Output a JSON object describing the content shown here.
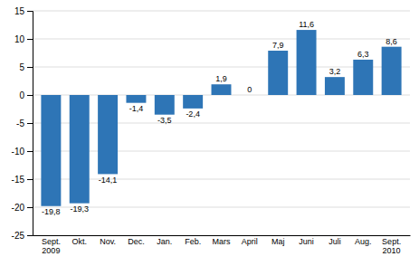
{
  "chart_data": {
    "type": "bar",
    "categories": [
      "Sept.\n2009",
      "Okt.",
      "Nov.",
      "Dec.",
      "Jan.",
      "Feb.",
      "Mars",
      "April",
      "Maj",
      "Juni",
      "Juli",
      "Aug.",
      "Sept.\n2010"
    ],
    "values": [
      -19.8,
      -19.3,
      -14.1,
      -1.4,
      -3.5,
      -2.4,
      1.9,
      0,
      7.9,
      11.6,
      3.2,
      6.3,
      8.6
    ],
    "value_labels": [
      "-19,8",
      "-19,3",
      "-14,1",
      "-1,4",
      "-3,5",
      "-2,4",
      "1,9",
      "0",
      "7,9",
      "11,6",
      "3,2",
      "6,3",
      "8,6"
    ],
    "data_labels": true,
    "color": "#2E75B6",
    "ylim": [
      -25,
      15
    ],
    "yticks": [
      -25,
      -20,
      -15,
      -10,
      -5,
      0,
      5,
      10,
      15
    ],
    "grid": true
  }
}
